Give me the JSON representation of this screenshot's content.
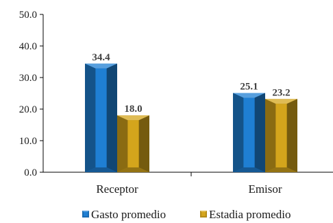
{
  "chart_data": {
    "type": "bar",
    "style": "3d-beveled",
    "categories": [
      "Receptor",
      "Emisor"
    ],
    "series": [
      {
        "name": "Gasto promedio",
        "values": [
          34.4,
          25.1
        ],
        "labels": [
          "34.4",
          "25.1"
        ],
        "color": "#1f7fd3"
      },
      {
        "name": "Estadia promedio",
        "values": [
          18.0,
          23.2
        ],
        "labels": [
          "18.0",
          "23.2"
        ],
        "color": "#d4a51c"
      }
    ],
    "ylim": [
      0,
      50
    ],
    "yticks": [
      0,
      10,
      20,
      30,
      40,
      50
    ],
    "ytick_labels": [
      "0.0",
      "10.0",
      "20.0",
      "30.0",
      "40.0",
      "50.0"
    ],
    "grid": false,
    "legend": "bottom"
  }
}
